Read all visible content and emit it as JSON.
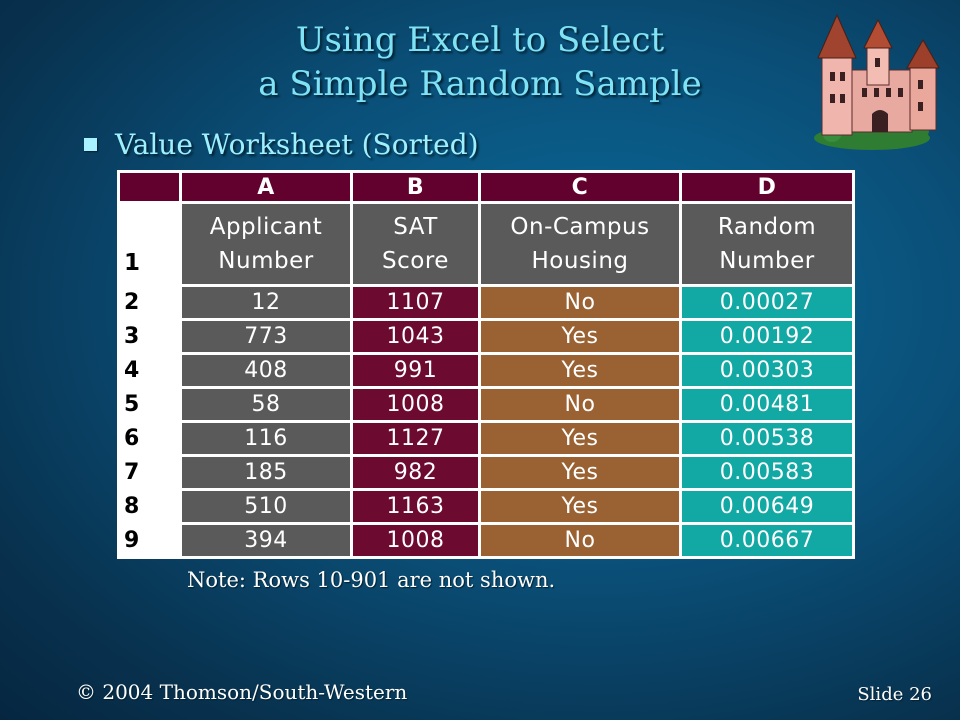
{
  "slide": {
    "title_line1": "Using Excel to Select",
    "title_line2": "a Simple Random Sample",
    "bullet": "Value Worksheet (Sorted)",
    "note": "Note:  Rows 10-901 are not shown.",
    "footer_left": "© 2004  Thomson/South-Western",
    "footer_right": "Slide 26"
  },
  "worksheet": {
    "column_letters": [
      "A",
      "B",
      "C",
      "D"
    ],
    "header_row_number": "1",
    "headers": [
      {
        "line1": "Applicant",
        "line2": "Number"
      },
      {
        "line1": "SAT",
        "line2": "Score"
      },
      {
        "line1": "On-Campus",
        "line2": "Housing"
      },
      {
        "line1": "Random",
        "line2": "Number"
      }
    ],
    "rows": [
      {
        "row": "2",
        "applicant": "12",
        "sat": "1107",
        "housing": "No",
        "random": "0.00027"
      },
      {
        "row": "3",
        "applicant": "773",
        "sat": "1043",
        "housing": "Yes",
        "random": "0.00192"
      },
      {
        "row": "4",
        "applicant": "408",
        "sat": "991",
        "housing": "Yes",
        "random": "0.00303"
      },
      {
        "row": "5",
        "applicant": "58",
        "sat": "1008",
        "housing": "No",
        "random": "0.00481"
      },
      {
        "row": "6",
        "applicant": "116",
        "sat": "1127",
        "housing": "Yes",
        "random": "0.00538"
      },
      {
        "row": "7",
        "applicant": "185",
        "sat": "982",
        "housing": "Yes",
        "random": "0.00583"
      },
      {
        "row": "8",
        "applicant": "510",
        "sat": "1163",
        "housing": "Yes",
        "random": "0.00649"
      },
      {
        "row": "9",
        "applicant": "394",
        "sat": "1008",
        "housing": "No",
        "random": "0.00667"
      }
    ]
  },
  "colors": {
    "column_header": "#62002e",
    "col_a": "#5a5a5a",
    "col_b": "#6c0a30",
    "col_c": "#9a6233",
    "col_d": "#12a8a4",
    "title": "#7fe3f5"
  },
  "icons": {
    "decoration": "castle-clipart"
  }
}
